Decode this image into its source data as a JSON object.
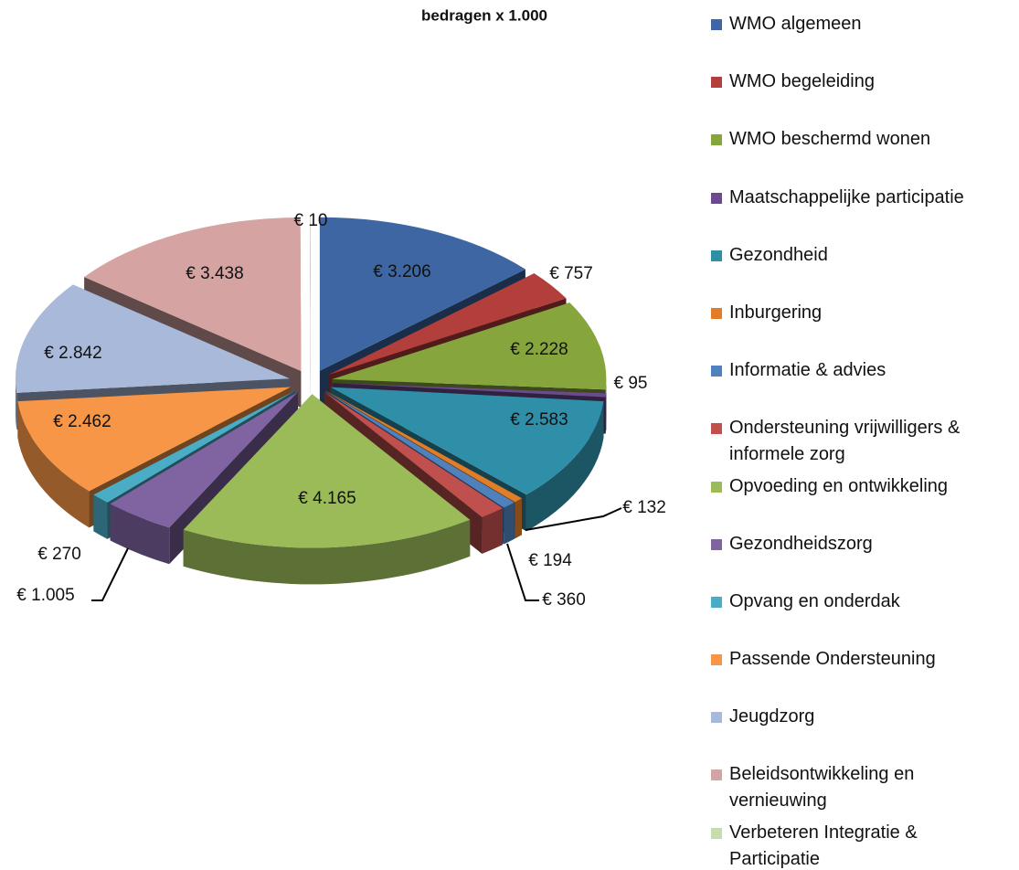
{
  "chart_data": {
    "type": "pie",
    "title": "bedragen x 1.000",
    "categories": [
      "WMO algemeen",
      "WMO begeleiding",
      "WMO beschermd wonen",
      "Maatschappelijke participatie",
      "Gezondheid",
      "Inburgering",
      "Informatie & advies",
      "Ondersteuning vrijwilligers & informele zorg",
      "Opvoeding en ontwikkeling",
      "Gezondheidszorg",
      "Opvang en onderdak",
      "Passende Ondersteuning",
      "Jeugdzorg",
      "Beleidsontwikkeling en vernieuwing",
      "Verbeteren Integratie & Participatie"
    ],
    "values": [
      3206,
      757,
      2228,
      95,
      2583,
      132,
      194,
      360,
      4165,
      1005,
      270,
      2462,
      2842,
      3438,
      10
    ],
    "value_labels": [
      "€ 3.206",
      "€ 757",
      "€ 2.228",
      "€ 95",
      "€ 2.583",
      "€ 132",
      "€ 194",
      "€ 360",
      "€ 4.165",
      "€ 1.005",
      "€ 270",
      "€ 2.462",
      "€ 2.842",
      "€ 3.438",
      "€ 10"
    ],
    "colors": [
      "#3d66a3",
      "#b23f3b",
      "#86a53d",
      "#6b4b8d",
      "#2f8fa8",
      "#e07d28",
      "#4f81bd",
      "#c0504d",
      "#9bbb59",
      "#8064a2",
      "#4bacc6",
      "#f79646",
      "#a9b9d9",
      "#d6a3a3",
      "#c6dcb0"
    ],
    "legend": "right"
  }
}
